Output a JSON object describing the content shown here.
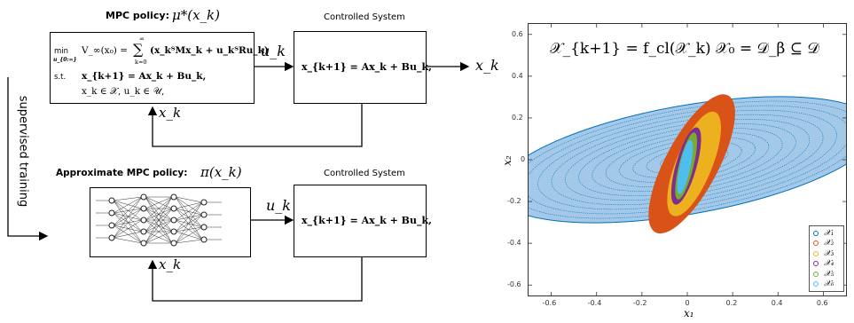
{
  "left": {
    "top_title_bold": "MPC policy:",
    "top_title_math": "μ*(x_k)",
    "mpc_box": {
      "min": "min",
      "min_sub": "u_{0:∞}",
      "objective_lhs": "V_∞(x₀) = ",
      "sum_top": "∞",
      "sum_bottom": "k=0",
      "objective_rhs": "(x_kᵀMx_k + u_kᵀRu_k)",
      "st": "s.t.",
      "dyn": "x_{k+1} = Ax_k + Bu_k,",
      "cons": "x_k ∈ 𝒳,   u_k ∈ 𝒰,"
    },
    "uk_top": "u_k",
    "xk_top_feedback": "x_k",
    "controlled_system_top": "Controlled System",
    "system_eq_top": "x_{k+1} = Ax_k + Bu_k,",
    "xk_output": "x_k",
    "supervised_training": "supervised training",
    "approx_title_bold": "Approximate MPC policy:",
    "approx_title_math": "π(x_k)",
    "uk_bottom": "u_k",
    "xk_bottom_feedback": "x_k",
    "controlled_system_bottom": "Controlled System",
    "system_eq_bottom": "x_{k+1} = Ax_k + Bu_k,"
  },
  "chart_data": {
    "type": "scatter",
    "annotation": "𝒳_{k+1} = f_cl(𝒳_k)    𝒳₀ = 𝒟_β ⊆ 𝒟",
    "xlabel": "x₁",
    "ylabel": "x₂",
    "xlim": [
      -0.7,
      0.7
    ],
    "ylim": [
      -0.65,
      0.65
    ],
    "xticks": [
      -0.6,
      -0.4,
      -0.2,
      0,
      0.2,
      0.4,
      0.6
    ],
    "yticks": [
      0.6,
      0.4,
      0.2,
      0,
      -0.2,
      -0.4,
      -0.6
    ],
    "xtick_labels": [
      "-0.6",
      "-0.4",
      "-0.2",
      "0",
      "0.2",
      "0.4",
      "0.6"
    ],
    "ytick_labels": [
      "0.6",
      "0.4",
      "0.2",
      "0",
      "-0.2",
      "-0.4",
      "-0.6"
    ],
    "legend_placement": "bottom-right",
    "series": [
      {
        "name": "𝒳₁",
        "color": "#0072bd",
        "center": [
          0,
          0
        ],
        "semi_axes": [
          0.85,
          0.26
        ],
        "angle_deg": -10
      },
      {
        "name": "𝒳₂",
        "color": "#d95319",
        "center": [
          0.02,
          -0.02
        ],
        "semi_axes": [
          0.34,
          0.125
        ],
        "angle_deg": -62
      },
      {
        "name": "𝒳₃",
        "color": "#edb120",
        "center": [
          0.03,
          -0.02
        ],
        "semi_axes": [
          0.245,
          0.085
        ],
        "angle_deg": -68
      },
      {
        "name": "𝒳₄",
        "color": "#7e2f8e",
        "center": [
          -0.005,
          -0.03
        ],
        "semi_axes": [
          0.175,
          0.048
        ],
        "angle_deg": -74
      },
      {
        "name": "𝒳₅",
        "color": "#77ac30",
        "center": [
          -0.005,
          -0.03
        ],
        "semi_axes": [
          0.15,
          0.033
        ],
        "angle_deg": -76
      },
      {
        "name": "𝒳₆",
        "color": "#4dbeee",
        "center": [
          -0.01,
          -0.035
        ],
        "semi_axes": [
          0.12,
          0.024
        ],
        "angle_deg": -78
      }
    ]
  }
}
